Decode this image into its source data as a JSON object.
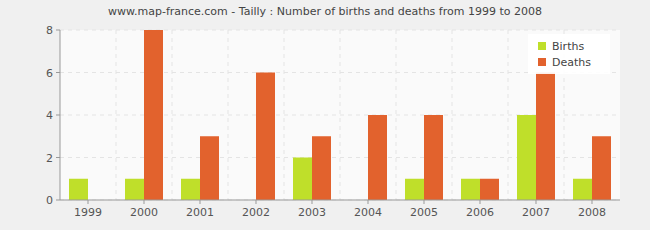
{
  "chart_data": {
    "type": "bar",
    "title": "www.map-france.com - Tailly : Number of births and deaths from 1999 to 2008",
    "categories": [
      "1999",
      "2000",
      "2001",
      "2002",
      "2003",
      "2004",
      "2005",
      "2006",
      "2007",
      "2008"
    ],
    "series": [
      {
        "name": "Births",
        "color": "#bfdf2a",
        "values": [
          1,
          1,
          1,
          0,
          2,
          0,
          1,
          1,
          4,
          1
        ]
      },
      {
        "name": "Deaths",
        "color": "#e2622d",
        "values": [
          0,
          8,
          3,
          6,
          3,
          4,
          4,
          1,
          6,
          3
        ]
      }
    ],
    "ylim": [
      0,
      8
    ],
    "yticks": [
      0,
      2,
      4,
      6,
      8
    ],
    "grid": true,
    "legend": "upper right"
  }
}
